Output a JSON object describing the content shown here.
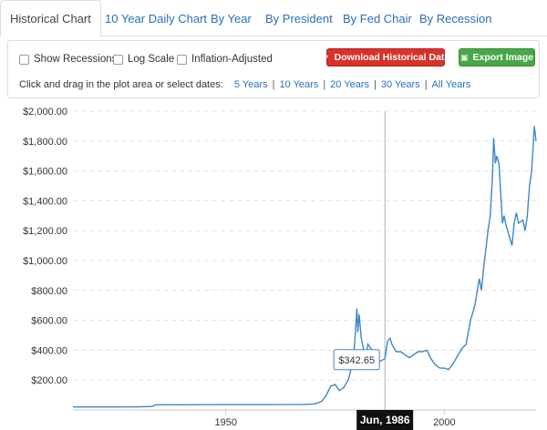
{
  "tabs": [
    {
      "label": "Historical Chart",
      "active": true
    },
    {
      "label": "10 Year Daily Chart",
      "active": false
    },
    {
      "label": "By Year",
      "active": false
    },
    {
      "label": "By President",
      "active": false
    },
    {
      "label": "By Fed Chair",
      "active": false
    },
    {
      "label": "By Recession",
      "active": false
    }
  ],
  "options": {
    "show_recessions": {
      "label": "Show Recessions",
      "checked": false
    },
    "log_scale": {
      "label": "Log Scale",
      "checked": false
    },
    "inflation_adjusted": {
      "label": "Inflation-Adjusted",
      "checked": false
    }
  },
  "buttons": {
    "download": "Download Historical Data",
    "export": "Export Image"
  },
  "date_range": {
    "prompt": "Click and drag in the plot area or select dates:",
    "links": [
      "5 Years",
      "10 Years",
      "20 Years",
      "30 Years",
      "All Years"
    ],
    "separator": "|"
  },
  "tooltip": {
    "value": "$342.65",
    "date": "Jun, 1986"
  },
  "colors": {
    "line": "#3d87c9",
    "accent_red": "#d9312b",
    "accent_green": "#4aa64a",
    "link": "#2a6fb8"
  },
  "chart_data": {
    "type": "line",
    "xlim": [
      1915,
      2021
    ],
    "ylim": [
      0,
      2000
    ],
    "yticks": [
      200,
      400,
      600,
      800,
      1000,
      1200,
      1400,
      1600,
      1800,
      2000
    ],
    "ytick_labels": [
      "$200.00",
      "$400.00",
      "$600.00",
      "$800.00",
      "$1,000.00",
      "$1,200.00",
      "$1,400.00",
      "$1,600.00",
      "$1,800.00",
      "$2,000.00"
    ],
    "xticks": [
      1950,
      2000
    ],
    "xtick_labels": [
      "1950",
      "2000"
    ],
    "grid": true,
    "crosshair_x": 1986.4,
    "series": [
      {
        "x": [
          1915,
          1920,
          1925,
          1930,
          1933,
          1934,
          1940,
          1950,
          1960,
          1968,
          1970,
          1971,
          1972,
          1973,
          1974,
          1975,
          1976,
          1977,
          1978,
          1979.0,
          1979.5,
          1980.0,
          1980.2,
          1980.5,
          1981,
          1981.5,
          1982.0,
          1982.5,
          1983.0,
          1983.5,
          1984,
          1985,
          1986.4,
          1987,
          1987.6,
          1988,
          1989,
          1990,
          1991,
          1992,
          1993,
          1994,
          1995,
          1996,
          1997,
          1998,
          1999,
          2000,
          2001,
          2002,
          2003,
          2004,
          2005,
          2006,
          2007,
          2008,
          2008.5,
          2009,
          2010,
          2010.5,
          2011,
          2011.3,
          2011.7,
          2012,
          2012.5,
          2013,
          2013.3,
          2013.7,
          2014,
          2015,
          2015.5,
          2016,
          2016.5,
          2017,
          2018,
          2018.5,
          2019,
          2019.5,
          2020,
          2020.2,
          2020.6,
          2021
        ],
        "y": [
          20,
          20,
          20,
          21,
          23,
          35,
          35,
          36,
          36,
          37,
          40,
          45,
          60,
          100,
          160,
          170,
          130,
          150,
          200,
          310,
          450,
          680,
          520,
          640,
          480,
          410,
          330,
          440,
          420,
          400,
          360,
          320,
          343,
          460,
          480,
          440,
          390,
          390,
          370,
          350,
          370,
          390,
          390,
          400,
          340,
          300,
          280,
          280,
          270,
          310,
          360,
          410,
          440,
          600,
          700,
          880,
          800,
          950,
          1200,
          1300,
          1550,
          1820,
          1650,
          1700,
          1650,
          1400,
          1250,
          1300,
          1250,
          1150,
          1100,
          1250,
          1320,
          1250,
          1270,
          1200,
          1300,
          1500,
          1600,
          1700,
          1900,
          1800
        ]
      }
    ]
  }
}
